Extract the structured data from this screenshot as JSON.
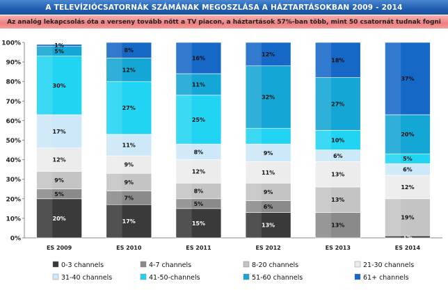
{
  "header": {
    "title": "A TELEVÍZIÓCSATORNÁK SZÁMÁNAK MEGOSZLÁSA A HÁZTARTÁSOKBAN 2009 - 2014",
    "subtitle": "Az analóg lekapcsolás óta a verseny tovább nőtt a TV piacon, a háztartások 57%-ban több, mint 50 csatornát tudnak fogni"
  },
  "chart_data": {
    "type": "bar",
    "stacked": true,
    "percent": true,
    "categories": [
      "ES 2009",
      "ES 2010",
      "ES 2011",
      "ES 2012",
      "ES 2013",
      "ES 2014"
    ],
    "ylim": [
      0,
      100
    ],
    "yticks": [
      "0%",
      "10%",
      "20%",
      "30%",
      "40%",
      "50%",
      "60%",
      "70%",
      "80%",
      "90%",
      "100%"
    ],
    "grid": false,
    "legend_position": "bottom",
    "series": [
      {
        "name": "0-3 channels",
        "color": "#3a3a3a",
        "text_color": "#ffffff",
        "values": [
          20,
          17,
          15,
          13,
          0,
          1
        ],
        "labels": [
          "20%",
          "17%",
          "15%",
          "13%",
          "",
          "1%"
        ]
      },
      {
        "name": "4-7 channels",
        "color": "#8a8a8a",
        "text_color": "#111111",
        "values": [
          5,
          7,
          5,
          6,
          13,
          0
        ],
        "labels": [
          "5%",
          "7%",
          "5%",
          "6%",
          "13%",
          ""
        ]
      },
      {
        "name": "8-20 channels",
        "color": "#c4c4c4",
        "text_color": "#111111",
        "values": [
          9,
          9,
          8,
          9,
          13,
          19
        ],
        "labels": [
          "9%",
          "9%",
          "8%",
          "9%",
          "13%",
          "19%"
        ]
      },
      {
        "name": "21-30 channels",
        "color": "#ececec",
        "text_color": "#111111",
        "values": [
          12,
          9,
          12,
          11,
          13,
          12
        ],
        "labels": [
          "12%",
          "9%",
          "12%",
          "11%",
          "13%",
          "12%"
        ]
      },
      {
        "name": "31-40 channels",
        "color": "#cde8f8",
        "text_color": "#111111",
        "values": [
          17,
          11,
          8,
          9,
          6,
          6
        ],
        "labels": [
          "17%",
          "11%",
          "8%",
          "9%",
          "6%",
          "6%"
        ]
      },
      {
        "name": "41-50-channels",
        "color": "#22d4f4",
        "text_color": "#111111",
        "values": [
          30,
          27,
          25,
          8,
          10,
          5
        ],
        "labels": [
          "30%",
          "27%",
          "25%",
          "",
          "10%",
          "5%"
        ]
      },
      {
        "name": "51-60 channels",
        "color": "#14a6d4",
        "text_color": "#111111",
        "values": [
          5,
          12,
          11,
          32,
          27,
          20
        ],
        "labels": [
          "5%",
          "12%",
          "11%",
          "32%",
          "27%",
          "20%"
        ]
      },
      {
        "name": "61+ channels",
        "color": "#1668c6",
        "text_color": "#111111",
        "values": [
          1,
          8,
          16,
          12,
          18,
          37
        ],
        "labels": [
          "1%",
          "8%",
          "16%",
          "12%",
          "18%",
          "37%"
        ]
      }
    ]
  }
}
